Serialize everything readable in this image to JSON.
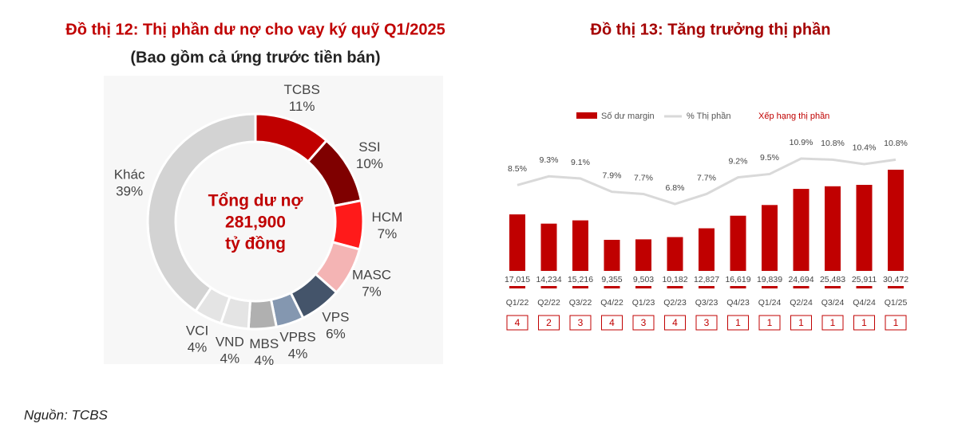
{
  "chart_data": [
    {
      "type": "pie",
      "title": "Đồ thị 12: Thị phần dư nợ cho vay ký quỹ Q1/2025",
      "subtitle": "(Bao gồm cả ứng trước tiền bán)",
      "center_label": [
        "Tổng dư nợ",
        "281,900",
        "tỷ đồng"
      ],
      "categories": [
        "TCBS",
        "SSI",
        "HCM",
        "MASC",
        "VPS",
        "VPBS",
        "MBS",
        "VND",
        "VCI",
        "Khác"
      ],
      "values": [
        11,
        10,
        7,
        7,
        6,
        4,
        4,
        4,
        4,
        39
      ],
      "value_labels": [
        "11%",
        "10%",
        "7%",
        "7%",
        "6%",
        "4%",
        "4%",
        "4%",
        "4%",
        "39%"
      ],
      "colors": [
        "#c00000",
        "#7f0000",
        "#ff1a1a",
        "#f4b4b4",
        "#44546a",
        "#8497b0",
        "#b0b0b0",
        "#e4e4e4",
        "#e4e4e4",
        "#d3d3d3"
      ]
    },
    {
      "type": "bar",
      "title": "Đồ thị 13: Tăng trưởng thị phần",
      "categories": [
        "Q1/22",
        "Q2/22",
        "Q3/22",
        "Q4/22",
        "Q1/23",
        "Q2/23",
        "Q3/23",
        "Q4/23",
        "Q1/24",
        "Q2/24",
        "Q3/24",
        "Q4/24",
        "Q1/25"
      ],
      "series": [
        {
          "name": "Số dư margin",
          "color": "#c00000",
          "values": [
            17015,
            14234,
            15216,
            9355,
            9503,
            10182,
            12827,
            16619,
            19839,
            24694,
            25483,
            25911,
            30472
          ],
          "value_labels": [
            "17,015",
            "14,234",
            "15,216",
            "9,355",
            "9,503",
            "10,182",
            "12,827",
            "16,619",
            "19,839",
            "24,694",
            "25,483",
            "25,911",
            "30,472"
          ]
        },
        {
          "name": "% Thị phần",
          "color": "#d9d9d9",
          "type": "line",
          "values": [
            8.5,
            9.3,
            9.1,
            7.9,
            7.7,
            6.8,
            7.7,
            9.2,
            9.5,
            10.9,
            10.8,
            10.4,
            10.8
          ],
          "value_labels": [
            "8.5%",
            "9.3%",
            "9.1%",
            "7.9%",
            "7.7%",
            "6.8%",
            "7.7%",
            "9.2%",
            "9.5%",
            "10.9%",
            "10.8%",
            "10.4%",
            "10.8%"
          ]
        }
      ],
      "rank": {
        "name": "Xếp hạng thị phần",
        "color": "#c00000",
        "values": [
          4,
          2,
          3,
          4,
          3,
          4,
          3,
          1,
          1,
          1,
          1,
          1,
          1
        ]
      }
    }
  ],
  "source": "Nguồn: TCBS"
}
